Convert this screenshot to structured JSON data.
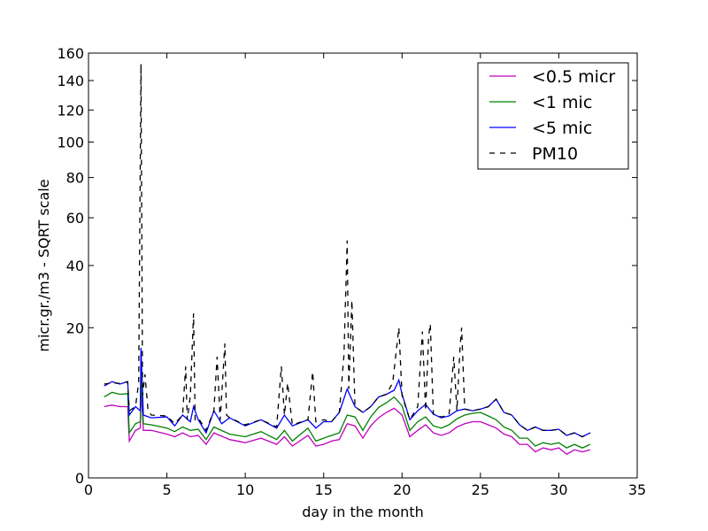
{
  "chart_data": {
    "type": "line",
    "title": "",
    "xlabel": "day in the month",
    "ylabel": "micr.gr./m3 - SQRT scale",
    "xlim": [
      0,
      35
    ],
    "ylim": [
      0,
      160
    ],
    "y_scale": "sqrt",
    "grid": false,
    "legend_position": "top-right",
    "x_ticks": [
      0,
      5,
      10,
      15,
      20,
      25,
      30,
      35
    ],
    "y_ticks": [
      0,
      20,
      40,
      60,
      80,
      100,
      120,
      140,
      160
    ],
    "series": [
      {
        "name": "<0.5 micr",
        "color": "#bf00bf",
        "style": "solid",
        "x": [
          1.0,
          1.5,
          2.0,
          2.5,
          2.6,
          3.0,
          3.3,
          3.35,
          3.5,
          4.0,
          5.0,
          5.5,
          6.0,
          6.5,
          7.0,
          7.5,
          8.0,
          9.0,
          10.0,
          11.0,
          12.0,
          12.5,
          13.0,
          14.0,
          14.5,
          15.0,
          15.5,
          16.0,
          16.5,
          17.0,
          17.5,
          18.0,
          18.5,
          19.0,
          19.5,
          20.0,
          20.5,
          21.0,
          21.5,
          22.0,
          22.5,
          23.0,
          23.5,
          24.0,
          24.5,
          25.0,
          25.5,
          26.0,
          26.5,
          27.0,
          27.5,
          28.0,
          28.5,
          29.0,
          29.5,
          30.0,
          30.5,
          31.0,
          31.5,
          32.0
        ],
        "values": [
          4.5,
          4.7,
          4.5,
          4.5,
          1.2,
          2.0,
          2.2,
          7.0,
          2.0,
          2.0,
          1.7,
          1.5,
          1.8,
          1.5,
          1.6,
          1.0,
          1.8,
          1.3,
          1.1,
          1.4,
          1.0,
          1.5,
          0.9,
          1.6,
          0.9,
          1.0,
          1.2,
          1.3,
          2.6,
          2.4,
          1.4,
          2.4,
          3.2,
          3.8,
          4.3,
          3.5,
          1.5,
          2.0,
          2.5,
          1.8,
          1.6,
          1.8,
          2.3,
          2.6,
          2.8,
          2.8,
          2.5,
          2.2,
          1.7,
          1.5,
          1.0,
          1.0,
          0.6,
          0.8,
          0.7,
          0.8,
          0.5,
          0.7,
          0.6,
          0.7
        ]
      },
      {
        "name": "<1 mic",
        "color": "#008000",
        "style": "solid",
        "x": [
          1.0,
          1.5,
          2.0,
          2.5,
          2.6,
          3.0,
          3.3,
          3.35,
          3.5,
          4.0,
          5.0,
          5.5,
          6.0,
          6.5,
          7.0,
          7.5,
          8.0,
          9.0,
          10.0,
          11.0,
          12.0,
          12.5,
          13.0,
          14.0,
          14.5,
          15.0,
          15.5,
          16.0,
          16.5,
          17.0,
          17.5,
          18.0,
          18.5,
          19.0,
          19.5,
          20.0,
          20.5,
          21.0,
          21.5,
          22.0,
          22.5,
          23.0,
          23.5,
          24.0,
          24.5,
          25.0,
          25.5,
          26.0,
          26.5,
          27.0,
          27.5,
          28.0,
          28.5,
          29.0,
          29.5,
          30.0,
          30.5,
          31.0,
          31.5,
          32.0
        ],
        "values": [
          5.8,
          6.5,
          6.2,
          6.3,
          1.8,
          2.6,
          2.8,
          9.0,
          2.6,
          2.5,
          2.2,
          1.9,
          2.3,
          2.0,
          2.1,
          1.3,
          2.3,
          1.7,
          1.5,
          1.9,
          1.3,
          2.0,
          1.2,
          2.2,
          1.2,
          1.4,
          1.6,
          1.8,
          3.5,
          3.3,
          2.0,
          3.3,
          4.4,
          5.0,
          5.8,
          4.6,
          2.0,
          2.8,
          3.3,
          2.4,
          2.2,
          2.5,
          3.1,
          3.5,
          3.7,
          3.8,
          3.4,
          3.0,
          2.3,
          2.0,
          1.4,
          1.4,
          0.9,
          1.1,
          1.0,
          1.1,
          0.8,
          1.0,
          0.8,
          1.0
        ]
      },
      {
        "name": "<5 mic",
        "color": "#0000ff",
        "style": "solid",
        "x": [
          1.0,
          1.5,
          2.0,
          2.5,
          2.6,
          3.0,
          3.3,
          3.35,
          3.5,
          4.0,
          5.0,
          5.5,
          6.0,
          6.5,
          6.7,
          7.0,
          7.5,
          8.0,
          8.5,
          9.0,
          10.0,
          11.0,
          12.0,
          12.5,
          13.0,
          14.0,
          14.5,
          15.0,
          15.5,
          16.0,
          16.5,
          17.0,
          17.5,
          18.0,
          18.5,
          19.0,
          19.5,
          19.8,
          20.0,
          20.5,
          21.0,
          21.5,
          22.0,
          22.5,
          23.0,
          23.5,
          24.0,
          24.5,
          25.0,
          25.5,
          26.0,
          26.5,
          27.0,
          27.5,
          28.0,
          28.5,
          29.0,
          29.5,
          30.0,
          30.5,
          31.0,
          31.5,
          32.0
        ],
        "values": [
          7.5,
          8.2,
          7.8,
          8.2,
          3.5,
          4.5,
          4.0,
          15.0,
          3.5,
          3.2,
          3.3,
          2.4,
          3.5,
          2.8,
          4.5,
          3.0,
          1.8,
          4.0,
          2.6,
          3.2,
          2.4,
          3.0,
          2.2,
          3.5,
          2.4,
          3.0,
          2.2,
          2.8,
          2.8,
          3.8,
          7.0,
          4.5,
          3.8,
          4.5,
          5.8,
          6.2,
          6.8,
          8.5,
          6.2,
          3.0,
          4.0,
          4.8,
          3.6,
          3.2,
          3.4,
          4.0,
          4.2,
          4.0,
          4.2,
          4.5,
          5.5,
          3.8,
          3.5,
          2.5,
          2.0,
          2.3,
          2.0,
          2.0,
          2.1,
          1.6,
          1.8,
          1.5,
          1.8
        ]
      },
      {
        "name": "PM10",
        "color": "#000000",
        "style": "dashed",
        "x": [
          1.0,
          1.5,
          2.0,
          2.5,
          2.6,
          3.0,
          3.2,
          3.35,
          3.45,
          3.6,
          3.8,
          4.0,
          5.0,
          5.5,
          6.0,
          6.2,
          6.3,
          6.5,
          6.7,
          6.8,
          7.0,
          7.5,
          8.0,
          8.2,
          8.4,
          8.7,
          8.8,
          9.0,
          10.0,
          11.0,
          12.0,
          12.3,
          12.5,
          12.7,
          13.0,
          14.0,
          14.3,
          14.5,
          15.0,
          15.5,
          16.0,
          16.3,
          16.5,
          16.6,
          16.8,
          17.0,
          17.5,
          18.0,
          18.5,
          19.0,
          19.4,
          19.8,
          20.0,
          20.5,
          21.0,
          21.3,
          21.5,
          21.7,
          21.8,
          22.0,
          22.5,
          23.0,
          23.3,
          23.5,
          23.7,
          23.8,
          24.0,
          24.5,
          25.0,
          25.5,
          26.0,
          26.5,
          27.0,
          27.5,
          28.0,
          28.5,
          29.0,
          29.5,
          30.0,
          30.5,
          31.0,
          31.5,
          32.0
        ],
        "values": [
          7.8,
          8.0,
          7.9,
          8.2,
          4.0,
          4.5,
          8.0,
          152.0,
          6.0,
          9.5,
          4.0,
          3.5,
          3.4,
          2.6,
          3.5,
          11.0,
          3.0,
          6.0,
          24.0,
          3.0,
          3.2,
          2.0,
          4.0,
          13.0,
          3.0,
          16.0,
          3.5,
          3.2,
          2.5,
          3.0,
          2.3,
          11.0,
          3.5,
          8.0,
          2.5,
          3.0,
          10.0,
          2.8,
          3.0,
          2.8,
          3.8,
          13.5,
          50.0,
          7.0,
          28.0,
          4.5,
          3.8,
          4.5,
          5.8,
          6.2,
          8.0,
          20.0,
          6.0,
          3.0,
          4.5,
          19.0,
          4.0,
          18.0,
          21.0,
          3.6,
          3.3,
          3.5,
          13.0,
          4.0,
          15.0,
          20.0,
          4.2,
          4.0,
          4.2,
          4.5,
          5.5,
          3.8,
          3.5,
          2.5,
          2.0,
          2.3,
          2.0,
          2.0,
          2.1,
          1.6,
          1.8,
          1.5,
          1.8
        ]
      }
    ]
  },
  "legend": {
    "items": [
      {
        "label": "<0.5 micr",
        "color": "#bf00bf",
        "dash": ""
      },
      {
        "label": "<1 mic",
        "color": "#008000",
        "dash": ""
      },
      {
        "label": "<5 mic",
        "color": "#0000ff",
        "dash": ""
      },
      {
        "label": "PM10",
        "color": "#000000",
        "dash": "6,6"
      }
    ]
  }
}
